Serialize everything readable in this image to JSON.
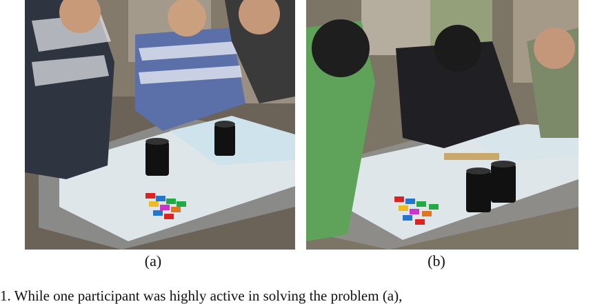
{
  "figure": {
    "panel_a_label": "(a)",
    "panel_b_label": "(b)",
    "caption_fragment": "1.   While one participant was highly active in solving the problem (a),"
  },
  "colors": {
    "table_surface": "#dfe6ea",
    "background": "#ffffff"
  }
}
